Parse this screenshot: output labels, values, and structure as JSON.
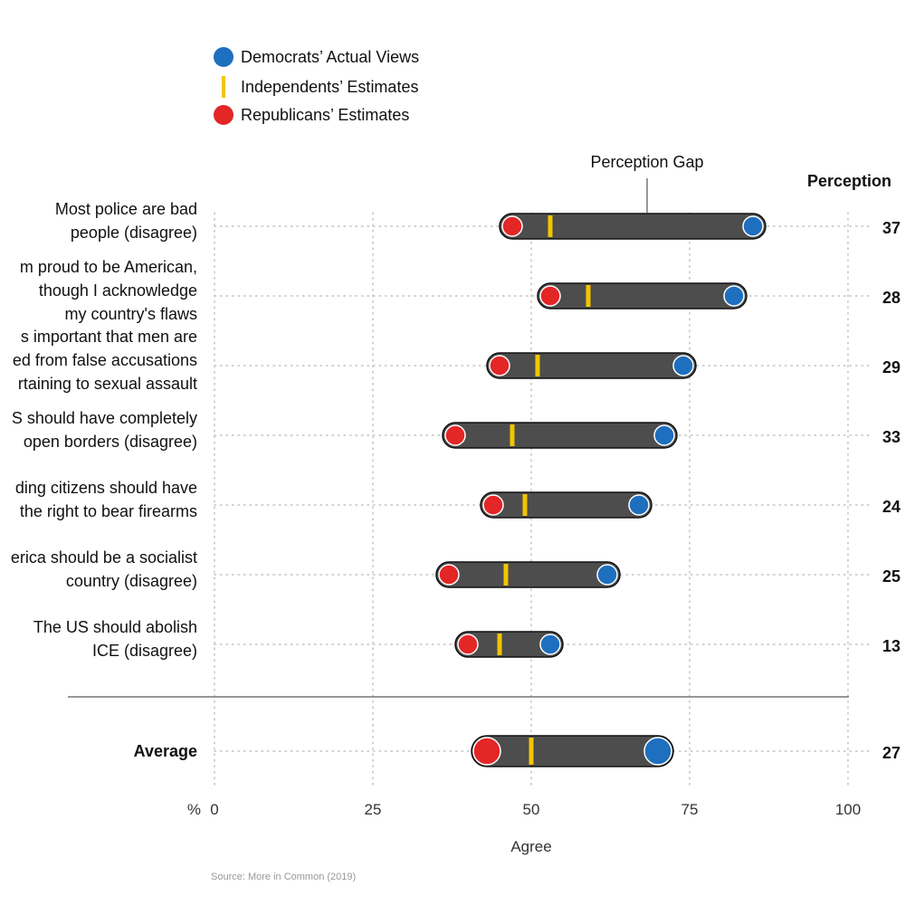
{
  "chart_data": {
    "type": "dot-range",
    "legend": [
      {
        "label": "Democrats’ Actual Views",
        "marker": "circle",
        "color": "#1f6fbf"
      },
      {
        "label": "Independents’ Estimates",
        "marker": "bar",
        "color": "#f2c500"
      },
      {
        "label": "Republicans’ Estimates",
        "marker": "circle",
        "color": "#e32626"
      }
    ],
    "annotation": "Perception Gap",
    "value_column_header": "Perception",
    "xlabel": "Agree",
    "x_unit": "%",
    "xlim": [
      0,
      100
    ],
    "x_ticks": [
      0,
      25,
      50,
      75,
      100
    ],
    "rows": [
      {
        "label": [
          "Most police are bad",
          "people (disagree)"
        ],
        "republicans": 47,
        "independents": 53,
        "democrats": 85,
        "gap": "37"
      },
      {
        "label": [
          "m proud to be American,",
          "though I acknowledge",
          "my country's flaws"
        ],
        "republicans": 53,
        "independents": 59,
        "democrats": 82,
        "gap": "28"
      },
      {
        "label": [
          "s important that men are",
          "ed from false accusations",
          "rtaining to sexual assault"
        ],
        "republicans": 45,
        "independents": 51,
        "democrats": 74,
        "gap": "29"
      },
      {
        "label": [
          "S should have completely",
          "open borders (disagree)"
        ],
        "republicans": 38,
        "independents": 47,
        "democrats": 71,
        "gap": "33"
      },
      {
        "label": [
          "ding citizens should have",
          "the right to bear firearms"
        ],
        "republicans": 44,
        "independents": 49,
        "democrats": 67,
        "gap": "24"
      },
      {
        "label": [
          "erica should be a socialist",
          "country (disagree)"
        ],
        "republicans": 37,
        "independents": 46,
        "democrats": 62,
        "gap": "25"
      },
      {
        "label": [
          "The US should abolish",
          "ICE (disagree)"
        ],
        "republicans": 40,
        "independents": 45,
        "democrats": 53,
        "gap": "13"
      }
    ],
    "average": {
      "label": "Average",
      "republicans": 43,
      "independents": 50,
      "democrats": 70,
      "gap": "27"
    },
    "source": "Source: More in Common (2019)"
  }
}
